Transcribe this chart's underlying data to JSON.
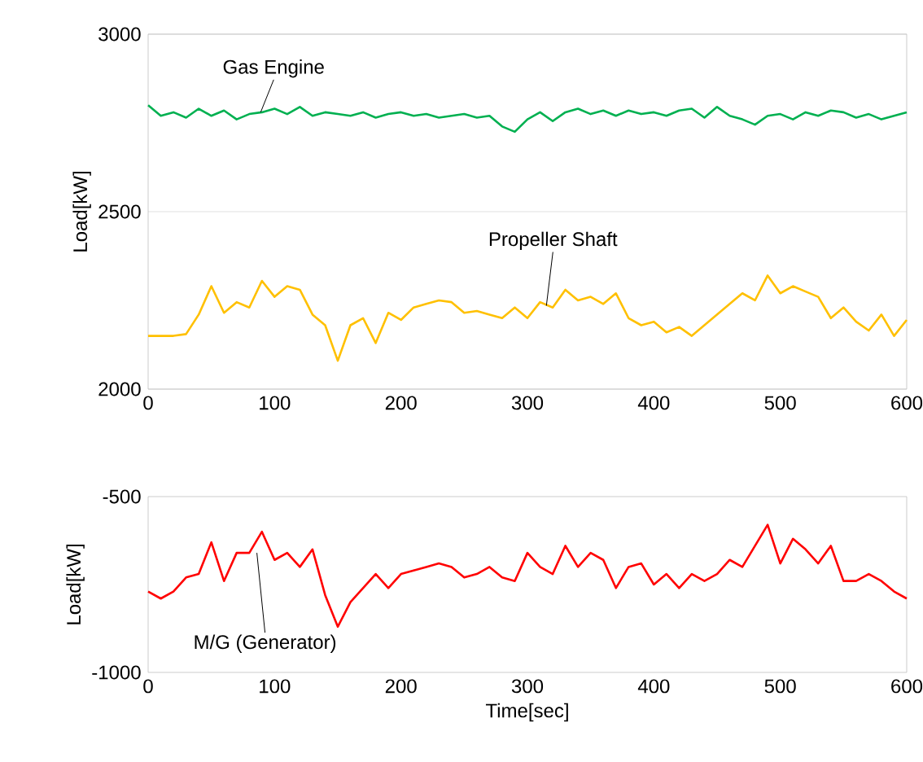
{
  "chart_data": [
    {
      "type": "line",
      "ylabel": "Load[kW]",
      "xlim": [
        0,
        600
      ],
      "xticks": [
        0,
        100,
        200,
        300,
        400,
        500,
        600
      ],
      "ylim": [
        2000,
        3000
      ],
      "yticks": [
        2000,
        2500,
        3000
      ],
      "grid": "y",
      "x": [
        0,
        10,
        20,
        30,
        40,
        50,
        60,
        70,
        80,
        90,
        100,
        110,
        120,
        130,
        140,
        150,
        160,
        170,
        180,
        190,
        200,
        210,
        220,
        230,
        240,
        250,
        260,
        270,
        280,
        290,
        300,
        310,
        320,
        330,
        340,
        350,
        360,
        370,
        380,
        390,
        400,
        410,
        420,
        430,
        440,
        450,
        460,
        470,
        480,
        490,
        500,
        510,
        520,
        530,
        540,
        550,
        560,
        570,
        580,
        590,
        600
      ],
      "series": [
        {
          "color": "#00b050",
          "values": [
            2800,
            2770,
            2780,
            2765,
            2790,
            2770,
            2785,
            2760,
            2775,
            2780,
            2790,
            2775,
            2795,
            2770,
            2780,
            2775,
            2770,
            2780,
            2765,
            2775,
            2780,
            2770,
            2775,
            2765,
            2770,
            2775,
            2765,
            2770,
            2740,
            2725,
            2760,
            2780,
            2755,
            2780,
            2790,
            2775,
            2785,
            2770,
            2785,
            2775,
            2780,
            2770,
            2785,
            2790,
            2765,
            2795,
            2770,
            2760,
            2745,
            2770,
            2775,
            2760,
            2780,
            2770,
            2785,
            2780,
            2765,
            2775,
            2760,
            2770,
            2780
          ]
        },
        {
          "color": "#ffc000",
          "values": [
            2150,
            2150,
            2150,
            2155,
            2210,
            2290,
            2215,
            2245,
            2230,
            2305,
            2260,
            2290,
            2280,
            2210,
            2180,
            2080,
            2180,
            2200,
            2130,
            2215,
            2195,
            2230,
            2240,
            2250,
            2245,
            2215,
            2220,
            2210,
            2200,
            2230,
            2200,
            2245,
            2230,
            2280,
            2250,
            2260,
            2240,
            2270,
            2200,
            2180,
            2190,
            2160,
            2175,
            2150,
            2180,
            2210,
            2240,
            2270,
            2250,
            2320,
            2270,
            2290,
            2275,
            2260,
            2200,
            2230,
            2190,
            2165,
            2210,
            2150,
            2195
          ]
        }
      ],
      "annotations": [
        {
          "text": "Gas Engine",
          "x": 89,
          "y": 2780
        },
        {
          "text": "Propeller Shaft",
          "x": 315,
          "y": 2235
        }
      ]
    },
    {
      "type": "line",
      "xlabel": "Time[sec]",
      "ylabel": "Load[kW]",
      "xlim": [
        0,
        600
      ],
      "xticks": [
        0,
        100,
        200,
        300,
        400,
        500,
        600
      ],
      "ylim": [
        -1000,
        -500
      ],
      "yticks": [
        -1000,
        -500
      ],
      "x": [
        0,
        10,
        20,
        30,
        40,
        50,
        60,
        70,
        80,
        90,
        100,
        110,
        120,
        130,
        140,
        150,
        160,
        170,
        180,
        190,
        200,
        210,
        220,
        230,
        240,
        250,
        260,
        270,
        280,
        290,
        300,
        310,
        320,
        330,
        340,
        350,
        360,
        370,
        380,
        390,
        400,
        410,
        420,
        430,
        440,
        450,
        460,
        470,
        480,
        490,
        500,
        510,
        520,
        530,
        540,
        550,
        560,
        570,
        580,
        590,
        600
      ],
      "series": [
        {
          "color": "#ff0000",
          "values": [
            -770,
            -790,
            -770,
            -730,
            -720,
            -630,
            -740,
            -660,
            -660,
            -600,
            -680,
            -660,
            -700,
            -650,
            -780,
            -870,
            -800,
            -760,
            -720,
            -760,
            -720,
            -710,
            -700,
            -690,
            -700,
            -730,
            -720,
            -700,
            -730,
            -740,
            -660,
            -700,
            -720,
            -640,
            -700,
            -660,
            -680,
            -760,
            -700,
            -690,
            -750,
            -720,
            -760,
            -720,
            -740,
            -720,
            -680,
            -700,
            -640,
            -580,
            -690,
            -620,
            -650,
            -690,
            -640,
            -740,
            -740,
            -720,
            -740,
            -770,
            -790
          ]
        }
      ],
      "annotations": [
        {
          "text": "M/G (Generator)",
          "x": 86,
          "y": -660
        }
      ]
    }
  ]
}
